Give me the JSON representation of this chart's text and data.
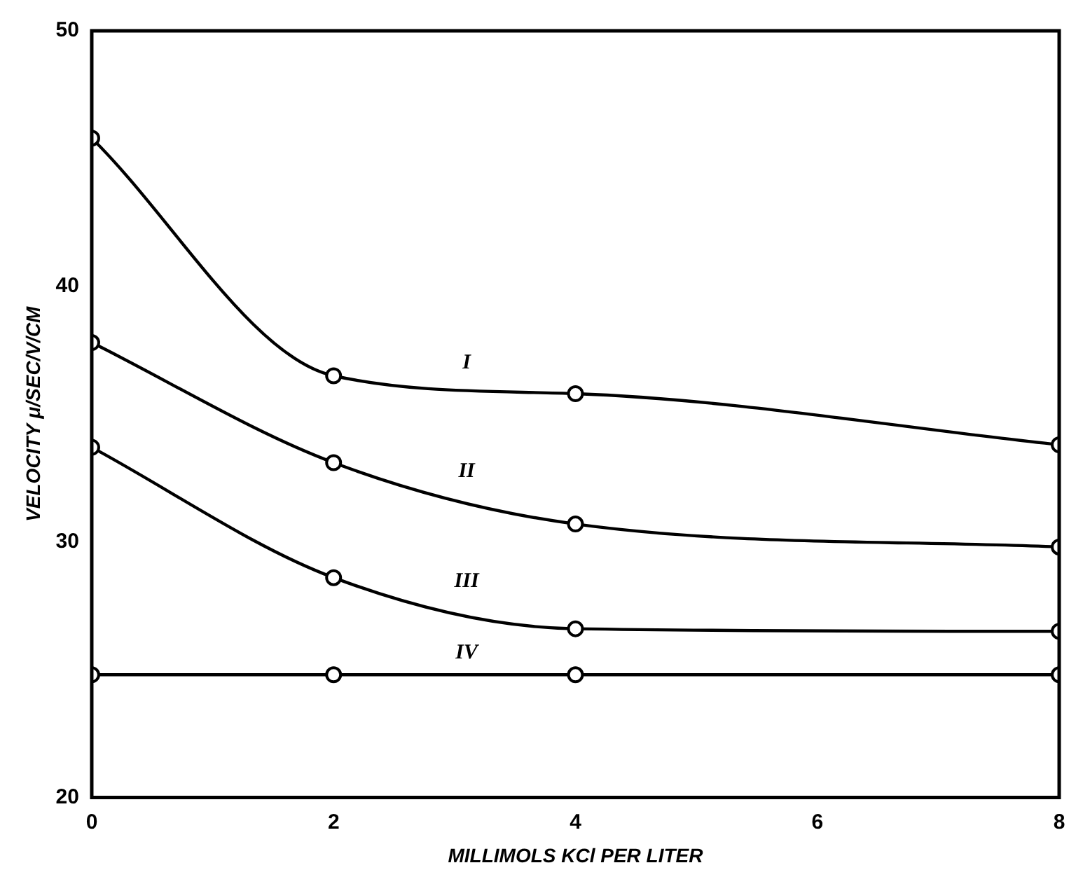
{
  "chart_data": {
    "type": "line",
    "xlabel": "MILLIMOLS KCl PER LITER",
    "ylabel": "VELOCITY μ/SEC/V/CM",
    "x": [
      0,
      2,
      4,
      8
    ],
    "series": [
      {
        "name": "I",
        "color": "#000000",
        "values": [
          45.8,
          36.5,
          35.8,
          33.8
        ]
      },
      {
        "name": "II",
        "color": "#000000",
        "values": [
          37.8,
          33.1,
          30.7,
          29.8
        ]
      },
      {
        "name": "III",
        "color": "#000000",
        "values": [
          33.7,
          28.6,
          26.6,
          26.5
        ]
      },
      {
        "name": "IV",
        "color": "#000000",
        "values": [
          24.8,
          24.8,
          24.8,
          24.8
        ]
      }
    ],
    "xlim": [
      0,
      8
    ],
    "xticks": [
      0,
      2,
      4,
      6,
      8
    ],
    "ylim": [
      20,
      50
    ],
    "yticks": [
      20,
      30,
      40,
      50
    ],
    "grid": false,
    "legend": false,
    "marker": "circle",
    "line_style": "solid"
  }
}
